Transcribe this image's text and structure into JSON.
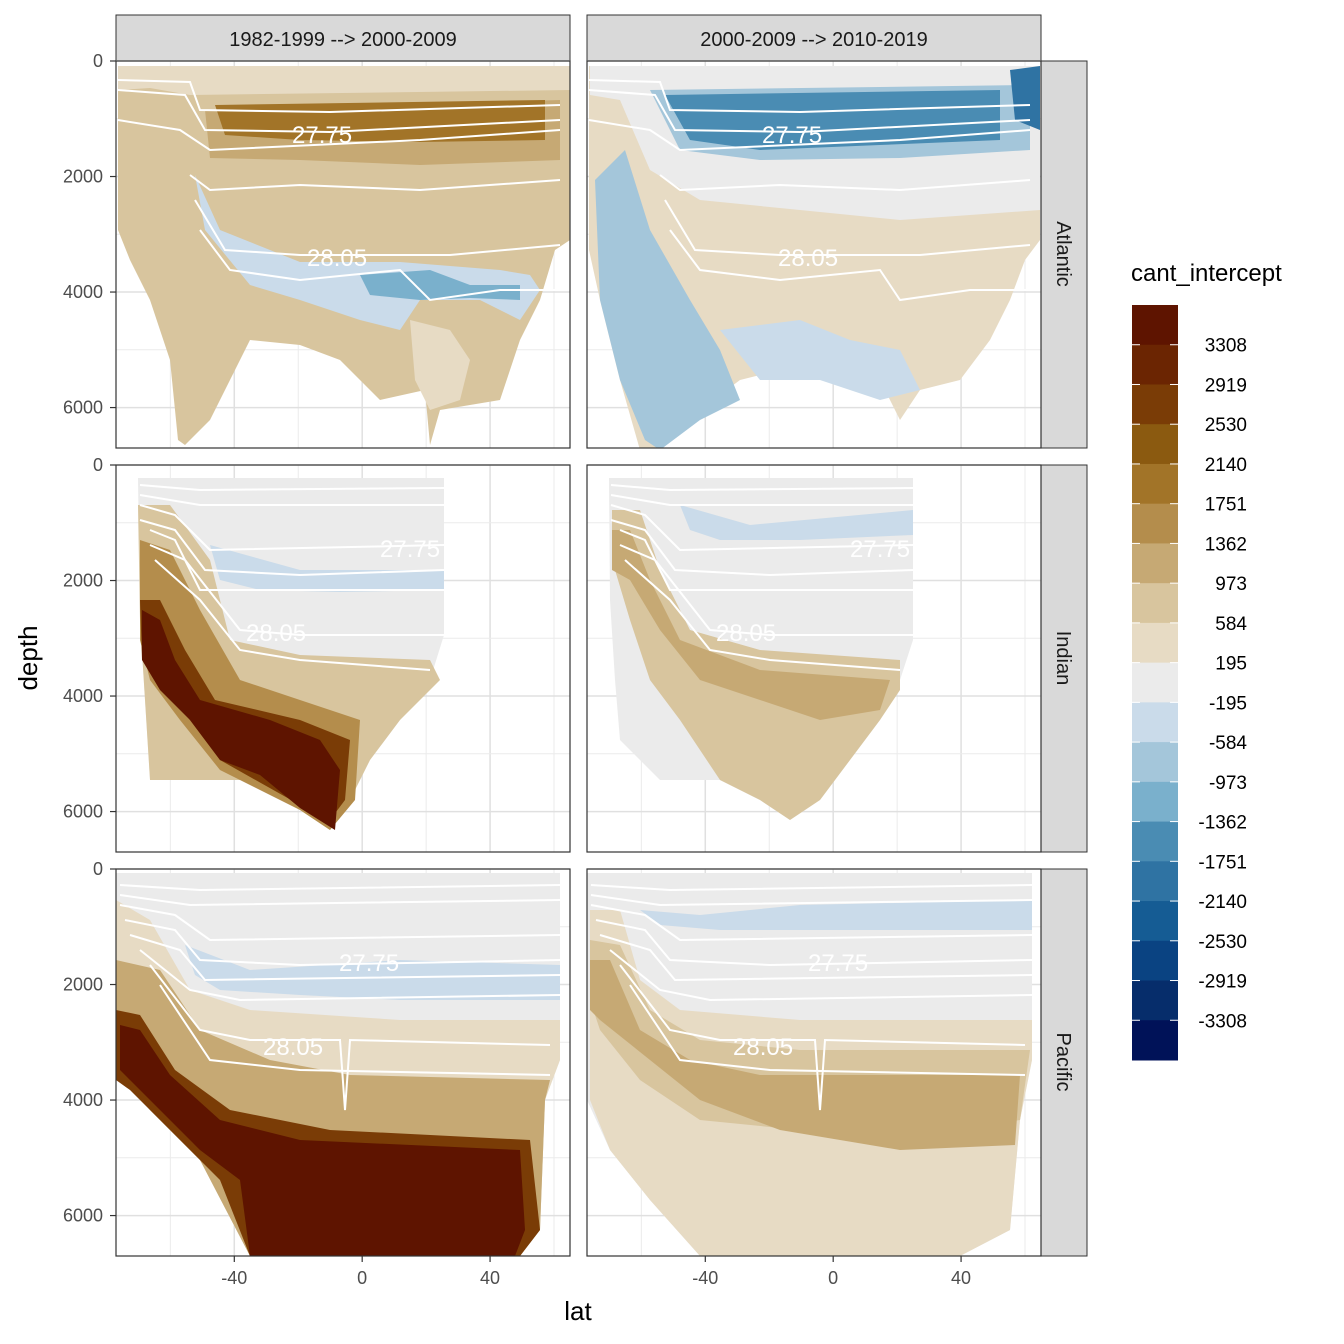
{
  "chart_data": {
    "type": "heatmap",
    "facet_columns": [
      "1982-1999 --> 2000-2009",
      "2000-2009 --> 2010-2019"
    ],
    "facet_rows": [
      "Atlantic",
      "Indian",
      "Pacific"
    ],
    "xlabel": "lat",
    "ylabel": "depth",
    "xlim": [
      -77,
      65
    ],
    "ylim": [
      6700,
      0
    ],
    "x_ticks": [
      -40,
      0,
      40
    ],
    "y_ticks": [
      0,
      2000,
      4000,
      6000
    ],
    "x_tick_labels": [
      "-40",
      "0",
      "40"
    ],
    "y_tick_labels": [
      "0",
      "2000",
      "4000",
      "6000"
    ],
    "isopycnal_labels": [
      "27.75",
      "28.05"
    ],
    "legend": {
      "title": "cant_intercept",
      "breaks": [
        "3308",
        "2919",
        "2530",
        "2140",
        "1751",
        "1362",
        "973",
        "584",
        "195",
        "-195",
        "-584",
        "-973",
        "-1362",
        "-1751",
        "-2140",
        "-2530",
        "-2919",
        "-3308"
      ],
      "colors": [
        "#5e1400",
        "#6b2502",
        "#7a3c06",
        "#8b5a10",
        "#a27428",
        "#b48d4c",
        "#c6a974",
        "#d8c59e",
        "#e7dbc4",
        "#ebebeb",
        "#cadbea",
        "#a4c6da",
        "#7ab0cc",
        "#4a8cb3",
        "#2f73a3",
        "#155c94",
        "#0a4382",
        "#062d6b",
        "#001258"
      ]
    },
    "panels": [
      {
        "basin": "Atlantic",
        "period": "1982-1999 --> 2000-2009",
        "lat_range": [
          -72,
          64
        ],
        "max_depth": 6400,
        "dominant_tone": "positive",
        "peak_band_depth": [
          600,
          1600
        ],
        "negative_band_depth": [
          3300,
          4200
        ]
      },
      {
        "basin": "Atlantic",
        "period": "2000-2009 --> 2010-2019",
        "lat_range": [
          -72,
          64
        ],
        "max_depth": 6600,
        "dominant_tone": "negative",
        "peak_band_depth": [
          600,
          1600
        ],
        "negative_band_depth": [
          600,
          1600
        ]
      },
      {
        "basin": "Indian",
        "period": "1982-1999 --> 2000-2009",
        "lat_range": [
          -70,
          25
        ],
        "max_depth": 6500,
        "dominant_tone": "strong-positive-deep",
        "peak_band_depth": [
          2500,
          6200
        ],
        "negative_band_depth": [
          1300,
          2100
        ]
      },
      {
        "basin": "Indian",
        "period": "2000-2009 --> 2010-2019",
        "lat_range": [
          -70,
          25
        ],
        "max_depth": 6500,
        "dominant_tone": "positive-deep",
        "peak_band_depth": [
          3000,
          5200
        ],
        "negative_band_depth": [
          700,
          1300
        ]
      },
      {
        "basin": "Pacific",
        "period": "1982-1999 --> 2000-2009",
        "lat_range": [
          -77,
          62
        ],
        "max_depth": 6700,
        "dominant_tone": "strong-positive-deep",
        "peak_band_depth": [
          3000,
          6700
        ],
        "negative_band_depth": [
          1500,
          2200
        ]
      },
      {
        "basin": "Pacific",
        "period": "2000-2009 --> 2010-2019",
        "lat_range": [
          -77,
          62
        ],
        "max_depth": 6700,
        "dominant_tone": "positive-deep",
        "peak_band_depth": [
          3500,
          4500
        ],
        "negative_band_depth": [
          500,
          1100
        ]
      }
    ]
  }
}
